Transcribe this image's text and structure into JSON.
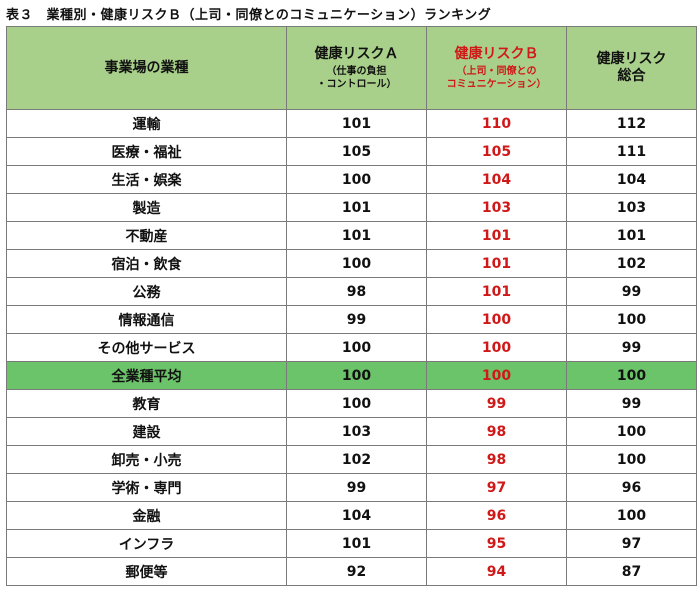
{
  "title": "表３　業種別・健康リスクＢ（上司・同僚とのコミュニケーション）ランキング",
  "header": {
    "col1": "事業場の業種",
    "col2_main": "健康リスクＡ",
    "col2_sub1": "（仕事の負担",
    "col2_sub2": "・コントロール）",
    "col3_main": "健康リスクＢ",
    "col3_sub1": "（上司・同僚との",
    "col3_sub2": "コミュニケーション）",
    "col4_line1": "健康リスク",
    "col4_line2": "総合"
  },
  "rows": [
    {
      "industry": "運輸",
      "a": "101",
      "b": "110",
      "total": "112"
    },
    {
      "industry": "医療・福祉",
      "a": "105",
      "b": "105",
      "total": "111"
    },
    {
      "industry": "生活・娯楽",
      "a": "100",
      "b": "104",
      "total": "104"
    },
    {
      "industry": "製造",
      "a": "101",
      "b": "103",
      "total": "103"
    },
    {
      "industry": "不動産",
      "a": "101",
      "b": "101",
      "total": "101"
    },
    {
      "industry": "宿泊・飲食",
      "a": "100",
      "b": "101",
      "total": "102"
    },
    {
      "industry": "公務",
      "a": "98",
      "b": "101",
      "total": "99"
    },
    {
      "industry": "情報通信",
      "a": "99",
      "b": "100",
      "total": "100"
    },
    {
      "industry": "その他サービス",
      "a": "100",
      "b": "100",
      "total": "99"
    },
    {
      "industry": "全業種平均",
      "a": "100",
      "b": "100",
      "total": "100"
    },
    {
      "industry": "教育",
      "a": "100",
      "b": "99",
      "total": "99"
    },
    {
      "industry": "建設",
      "a": "103",
      "b": "98",
      "total": "100"
    },
    {
      "industry": "卸売・小売",
      "a": "102",
      "b": "98",
      "total": "100"
    },
    {
      "industry": "学術・専門",
      "a": "99",
      "b": "97",
      "total": "96"
    },
    {
      "industry": "金融",
      "a": "104",
      "b": "96",
      "total": "100"
    },
    {
      "industry": "インフラ",
      "a": "101",
      "b": "95",
      "total": "97"
    },
    {
      "industry": "郵便等",
      "a": "92",
      "b": "94",
      "total": "87"
    }
  ],
  "colors": {
    "header_bg": "#a8d08a",
    "average_row_bg": "#6cc46a",
    "risk_b_text": "#d01818"
  }
}
